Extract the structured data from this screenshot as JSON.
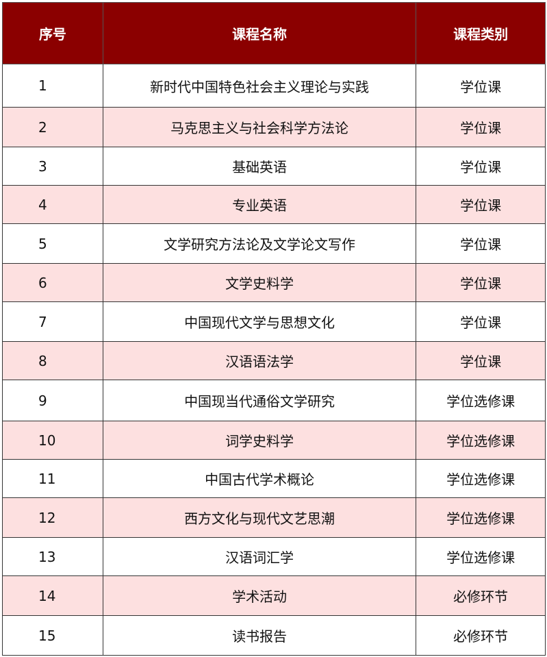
{
  "colors": {
    "header_bg": "#8b0000",
    "alt_row_bg": "#fde0e0"
  },
  "headers": [
    "序号",
    "课程名称",
    "课程类别"
  ],
  "rows": [
    [
      "1",
      "新时代中国特色社会主义理论与实践",
      "学位课"
    ],
    [
      "2",
      "马克思主义与社会科学方法论",
      "学位课"
    ],
    [
      "3",
      "基础英语",
      "学位课"
    ],
    [
      "4",
      "专业英语",
      "学位课"
    ],
    [
      "5",
      "文学研究方法论及文学论文写作",
      "学位课"
    ],
    [
      "6",
      "文学史料学",
      "学位课"
    ],
    [
      "7",
      "中国现代文学与思想文化",
      "学位课"
    ],
    [
      "8",
      "汉语语法学",
      "学位课"
    ],
    [
      "9",
      "中国现当代通俗文学研究",
      "学位选修课"
    ],
    [
      "10",
      "词学史料学",
      "学位选修课"
    ],
    [
      "11",
      "中国古代学术概论",
      "学位选修课"
    ],
    [
      "12",
      "西方文化与现代文艺思潮",
      "学位选修课"
    ],
    [
      "13",
      "汉语词汇学",
      "学位选修课"
    ],
    [
      "14",
      "学术活动",
      "必修环节"
    ],
    [
      "15",
      "读书报告",
      "必修环节"
    ]
  ]
}
